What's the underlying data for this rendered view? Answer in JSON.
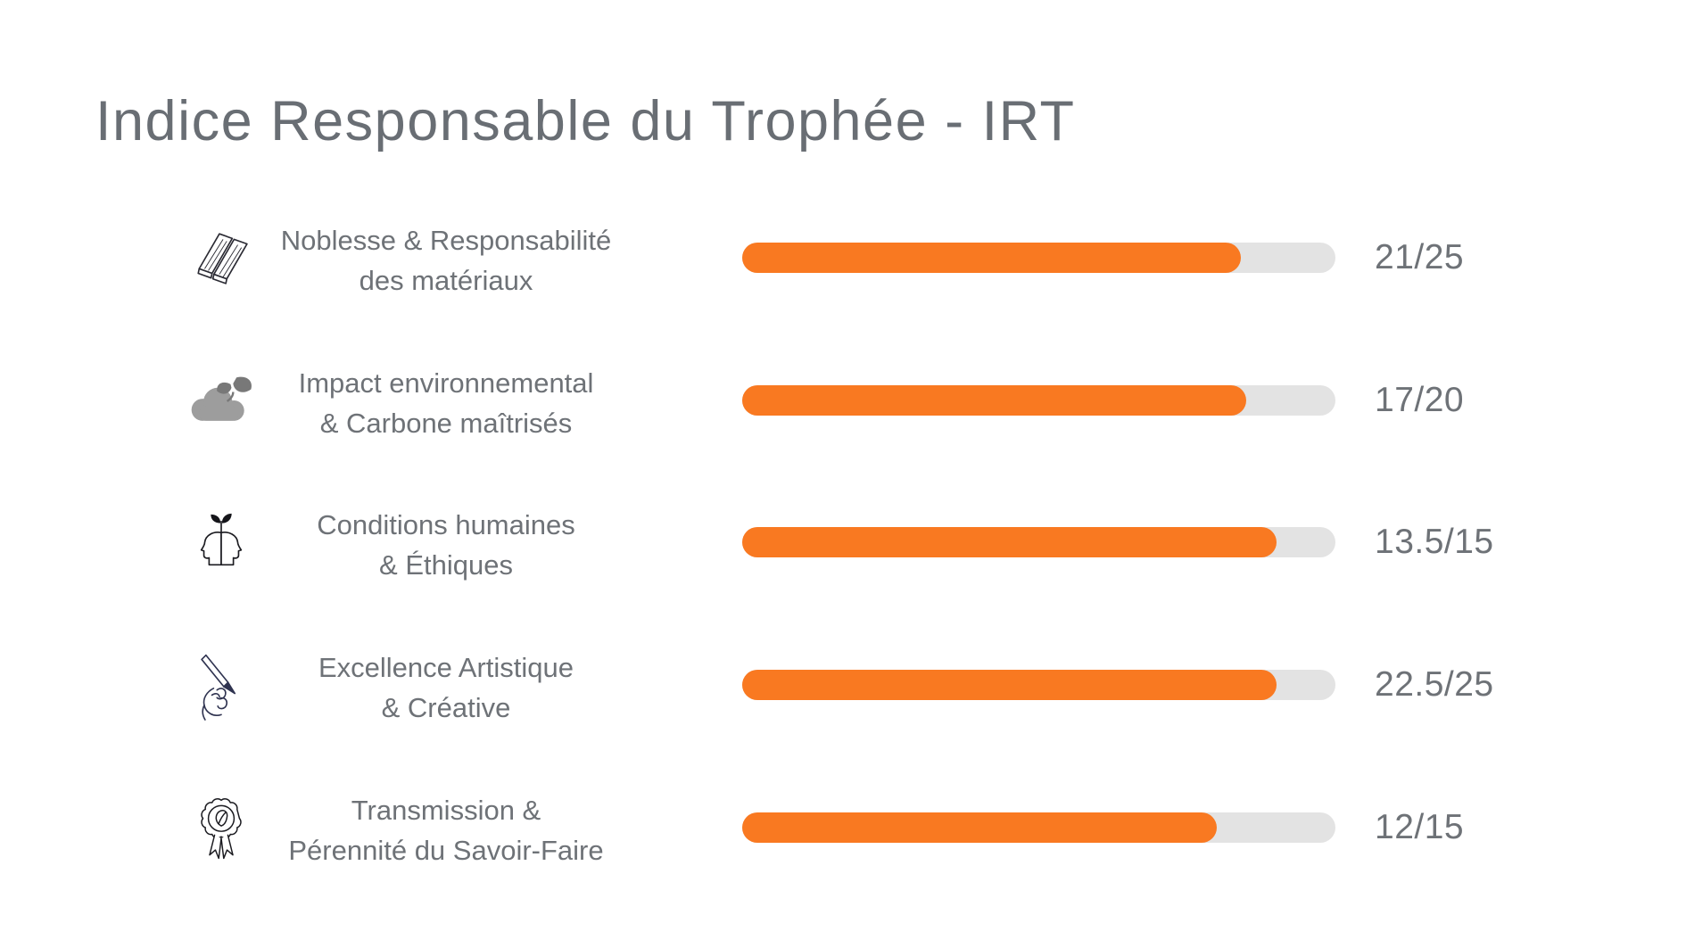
{
  "page_title": "Indice Responsable du Trophée - IRT",
  "colors": {
    "accent_orange": "#F97921",
    "bar_track_gray": "#E3E3E3",
    "text_gray": "#6E7277",
    "title_gray": "#696E74",
    "icon_outline_dark": "#23232B",
    "icon_navy": "#2F3350",
    "cloud_gray": "#9D9D9D",
    "leaf_gray": "#787878"
  },
  "chart_data": {
    "type": "bar",
    "orientation": "horizontal",
    "title": "Indice Responsable du Trophée - IRT",
    "value_format": "score/max",
    "axis_range": [
      0,
      100
    ],
    "grid": false,
    "legend": false,
    "items": [
      {
        "icon": "wood-planks-icon",
        "label": [
          "Noblesse & Responsabilité",
          "des matériaux"
        ],
        "value": 21,
        "max": 25,
        "display": "21/25",
        "pct": 84
      },
      {
        "icon": "cloud-leaves-icon",
        "label": [
          "Impact environnemental",
          "& Carbone maîtrisés"
        ],
        "value": 17,
        "max": 20,
        "display": "17/20",
        "pct": 85
      },
      {
        "icon": "heads-sprout-icon",
        "label": [
          "Conditions humaines",
          "& Éthiques"
        ],
        "value": 13.5,
        "max": 15,
        "display": "13.5/15",
        "pct": 90
      },
      {
        "icon": "hand-pen-icon",
        "label": [
          "Excellence Artistique",
          "& Créative"
        ],
        "value": 22.5,
        "max": 25,
        "display": "22.5/25",
        "pct": 90
      },
      {
        "icon": "award-ribbon-icon",
        "label": [
          "Transmission &",
          "Pérennité du Savoir-Faire"
        ],
        "value": 12,
        "max": 15,
        "display": "12/15",
        "pct": 80
      }
    ]
  }
}
